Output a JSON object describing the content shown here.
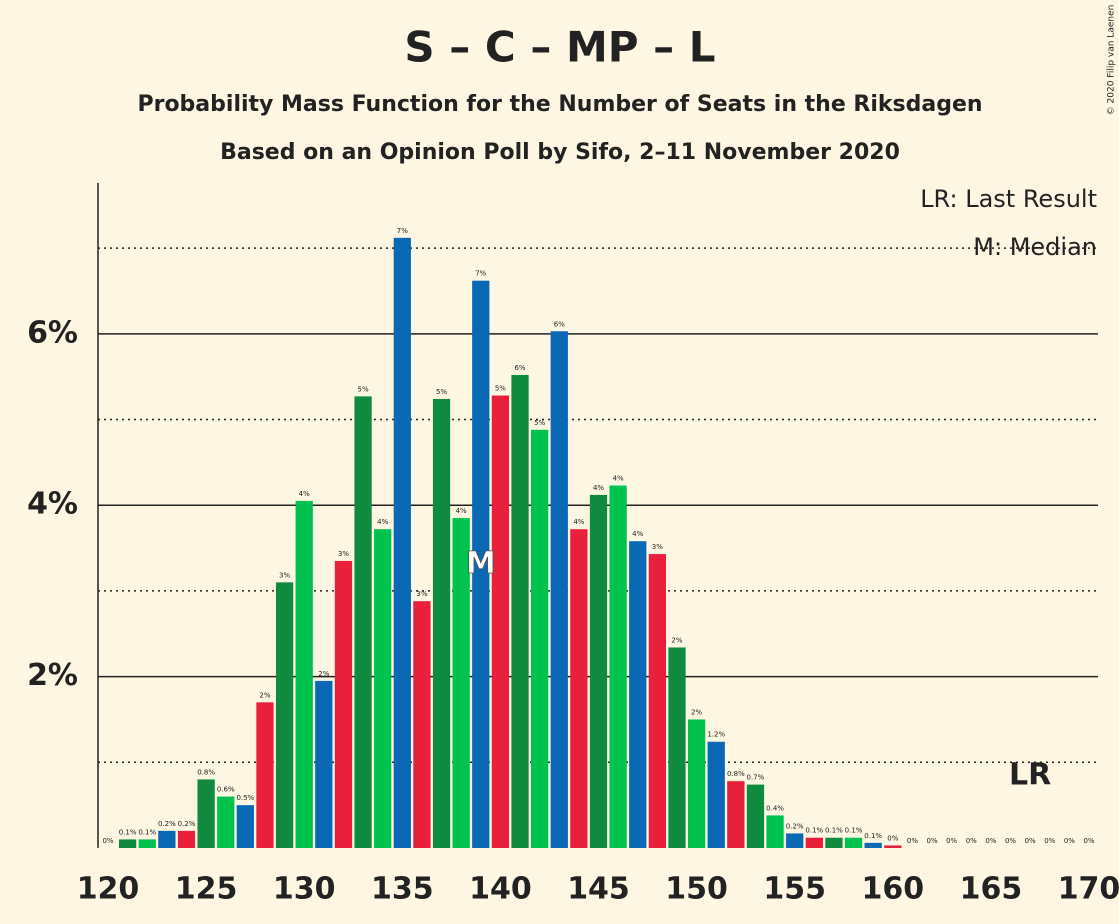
{
  "chart_data": {
    "type": "bar",
    "title": "S – C – MP – L",
    "subtitle": "Probability Mass Function for the Number of Seats in the Riksdagen",
    "subtitle2": "Based on an Opinion Poll by Sifo, 2–11 November 2020",
    "copyright": "© 2020 Filip van Laenen",
    "legend_last_result": "LR: Last Result",
    "legend_median": "M: Median",
    "x": [
      120,
      121,
      122,
      123,
      124,
      125,
      126,
      127,
      128,
      129,
      130,
      131,
      132,
      133,
      134,
      135,
      136,
      137,
      138,
      139,
      140,
      141,
      142,
      143,
      144,
      145,
      146,
      147,
      148,
      149,
      150,
      151,
      152,
      153,
      154,
      155,
      156,
      157,
      158,
      159,
      160,
      161,
      162,
      163,
      164,
      165,
      166,
      167,
      168,
      169,
      170
    ],
    "values": [
      0,
      0.1,
      0.1,
      0.2,
      0.2,
      0.8,
      0.6,
      0.5,
      1.7,
      3.1,
      4.05,
      1.95,
      3.35,
      5.27,
      3.72,
      7.12,
      2.88,
      5.24,
      3.85,
      6.62,
      5.28,
      5.52,
      4.88,
      6.03,
      3.72,
      4.12,
      4.23,
      3.58,
      3.43,
      2.34,
      1.5,
      1.24,
      0.78,
      0.74,
      0.38,
      0.17,
      0.12,
      0.12,
      0.12,
      0.06,
      0.03,
      0,
      0,
      0,
      0,
      0,
      0,
      0,
      0,
      0,
      0
    ],
    "value_labels": [
      "0%",
      "0.1%",
      "0.1%",
      "0.2%",
      "0.2%",
      "0.8%",
      "0.6%",
      "0.5%",
      "2%",
      "3%",
      "4%",
      "2%",
      "3%",
      "5%",
      "4%",
      "7%",
      "3%",
      "5%",
      "4%",
      "7%",
      "5%",
      "6%",
      "5%",
      "6%",
      "4%",
      "4%",
      "4%",
      "4%",
      "3%",
      "2%",
      "2%",
      "1.2%",
      "0.8%",
      "0.7%",
      "0.4%",
      "0.2%",
      "0.1%",
      "0.1%",
      "0.1%",
      "0.1%",
      "0%",
      "0%",
      "0%",
      "0%",
      "0%",
      "0%",
      "0%",
      "0%",
      "0%",
      "0%",
      "0%"
    ],
    "color_cycle": [
      "#e8203b",
      "#108a3e",
      "#00c24f",
      "#0a69b5"
    ],
    "xlim": [
      120,
      170
    ],
    "xticks": [
      120,
      125,
      130,
      135,
      140,
      145,
      150,
      155,
      160,
      165,
      170
    ],
    "ylim": [
      0,
      7.76
    ],
    "yticks": [
      {
        "value": 2,
        "label": "2%"
      },
      {
        "value": 4,
        "label": "4%"
      },
      {
        "value": 6,
        "label": "6%"
      }
    ],
    "minor_gridlines": [
      1,
      3,
      5,
      7
    ],
    "median": 139,
    "median_label": "M",
    "last_result": 167,
    "last_result_label": "LR"
  }
}
